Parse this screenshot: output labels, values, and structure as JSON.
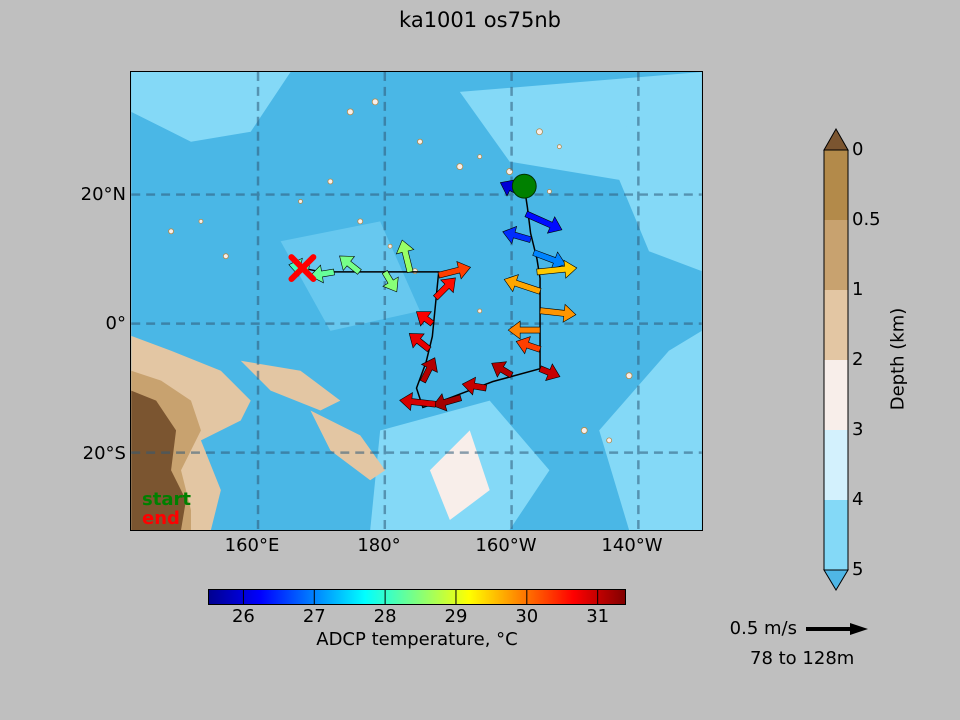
{
  "title": "ka1001 os75nb",
  "map": {
    "lat_labels": [
      "20°N",
      "0°",
      "20°S"
    ],
    "lon_labels": [
      "160°E",
      "180°",
      "160°W",
      "140°W"
    ],
    "extent": {
      "lon_min": 140,
      "lon_max": 230,
      "lat_min": -32,
      "lat_max": 39
    },
    "grid_lons": [
      160,
      180,
      200,
      220
    ],
    "grid_lats": [
      20,
      0,
      -20
    ],
    "start_marker": {
      "lon": 202,
      "lat": 21.3,
      "color": "#008000"
    },
    "end_marker": {
      "lon": 167,
      "lat": 8.6,
      "color": "#ff0000"
    },
    "track": [
      [
        202,
        21.3
      ],
      [
        202.5,
        18
      ],
      [
        203,
        14
      ],
      [
        204,
        10
      ],
      [
        204.5,
        7
      ],
      [
        204.5,
        3
      ],
      [
        204.5,
        0
      ],
      [
        204.5,
        -3
      ],
      [
        204.5,
        -7
      ],
      [
        197,
        -9
      ],
      [
        189,
        -12
      ],
      [
        186,
        -13
      ],
      [
        185,
        -10
      ],
      [
        186.5,
        -6
      ],
      [
        187.5,
        -2
      ],
      [
        188,
        3
      ],
      [
        188.5,
        8
      ],
      [
        182,
        8
      ],
      [
        176,
        8
      ],
      [
        170,
        8
      ],
      [
        167,
        8.6
      ]
    ],
    "current_vectors": [
      {
        "lon": 202,
        "lat": 20,
        "u": -0.6,
        "v": 0.3,
        "temp": 26.0
      },
      {
        "lon": 202.3,
        "lat": 17,
        "u": 0.9,
        "v": -0.4,
        "temp": 26.3
      },
      {
        "lon": 203,
        "lat": 13,
        "u": -0.7,
        "v": 0.2,
        "temp": 26.5
      },
      {
        "lon": 203.5,
        "lat": 11,
        "u": 0.8,
        "v": -0.3,
        "temp": 27.0
      },
      {
        "lon": 204,
        "lat": 8,
        "u": 1.0,
        "v": 0.1,
        "temp": 29.5
      },
      {
        "lon": 204.5,
        "lat": 5,
        "u": -0.9,
        "v": 0.3,
        "temp": 29.7
      },
      {
        "lon": 204.5,
        "lat": 2,
        "u": 0.9,
        "v": -0.1,
        "temp": 29.8
      },
      {
        "lon": 204.5,
        "lat": -1,
        "u": -0.8,
        "v": 0.0,
        "temp": 29.9
      },
      {
        "lon": 204.5,
        "lat": -4,
        "u": -0.6,
        "v": 0.2,
        "temp": 30.3
      },
      {
        "lon": 204.5,
        "lat": -7,
        "u": 0.5,
        "v": -0.2,
        "temp": 31.0
      },
      {
        "lon": 200,
        "lat": -8,
        "u": -0.5,
        "v": 0.3,
        "temp": 31.1
      },
      {
        "lon": 196,
        "lat": -10,
        "u": -0.6,
        "v": 0.1,
        "temp": 31.0
      },
      {
        "lon": 192,
        "lat": -11.5,
        "u": -0.7,
        "v": -0.2,
        "temp": 31.2
      },
      {
        "lon": 188,
        "lat": -12.5,
        "u": -0.9,
        "v": 0.1,
        "temp": 30.9
      },
      {
        "lon": 186,
        "lat": -9,
        "u": 0.3,
        "v": 0.6,
        "temp": 31.1
      },
      {
        "lon": 187,
        "lat": -4,
        "u": -0.5,
        "v": 0.4,
        "temp": 30.8
      },
      {
        "lon": 187.5,
        "lat": 0,
        "u": -0.4,
        "v": 0.3,
        "temp": 30.7
      },
      {
        "lon": 188,
        "lat": 4,
        "u": 0.5,
        "v": 0.5,
        "temp": 30.6
      },
      {
        "lon": 188.5,
        "lat": 7.5,
        "u": 0.8,
        "v": 0.2,
        "temp": 30.3
      },
      {
        "lon": 184,
        "lat": 8,
        "u": -0.2,
        "v": 0.8,
        "temp": 28.6
      },
      {
        "lon": 180,
        "lat": 8,
        "u": 0.3,
        "v": -0.5,
        "temp": 28.5
      },
      {
        "lon": 176,
        "lat": 8,
        "u": -0.5,
        "v": 0.4,
        "temp": 28.4
      },
      {
        "lon": 172,
        "lat": 8,
        "u": -0.6,
        "v": -0.1,
        "temp": 28.3
      },
      {
        "lon": 168,
        "lat": 8.5,
        "u": -0.5,
        "v": 0.1,
        "temp": 28.1
      }
    ]
  },
  "legend": {
    "start": "start",
    "end": "end"
  },
  "temperature_colorbar": {
    "ticks": [
      "26",
      "27",
      "28",
      "29",
      "30",
      "31"
    ],
    "min": 25.5,
    "max": 31.4,
    "label": "ADCP temperature, °C"
  },
  "depth_colorbar": {
    "ticks": [
      "0",
      "0.5",
      "1",
      "2",
      "3",
      "4",
      "5"
    ],
    "label": "Depth (km)",
    "colors": [
      "#b38a4a",
      "#c8a26f",
      "#e3c6a3",
      "#f8eeea",
      "#d3f1fd",
      "#84d9f7",
      "#43b8e8"
    ],
    "extend_top_color": "#7b5530",
    "extend_bottom_color": "#4fb6e6"
  },
  "reference": {
    "speed": "0.5 m/s",
    "depth_range": "78 to 128m"
  }
}
